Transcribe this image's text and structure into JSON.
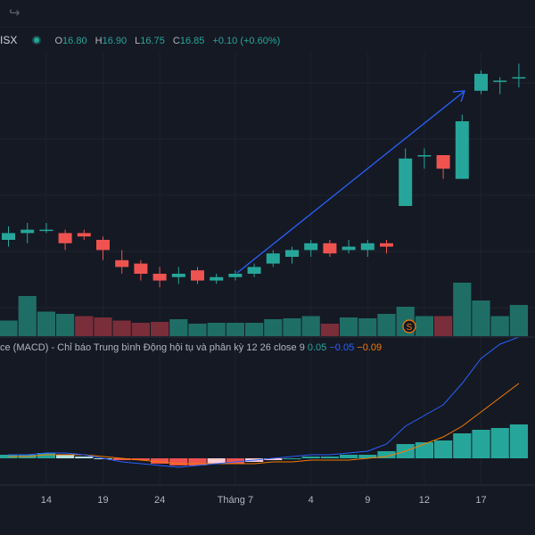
{
  "toolbar": {
    "redo_icon": "redo-icon"
  },
  "legend": {
    "symbol": "ISX",
    "open_label": "O",
    "open": "16.80",
    "high_label": "H",
    "high": "16.90",
    "low_label": "L",
    "low": "16.75",
    "close_label": "C",
    "close": "16.85",
    "change": "+0.10 (+0.60%)"
  },
  "macd_legend": {
    "title": "ce (MACD) - Chỉ báo Trung bình Động hội tụ và phân kỳ",
    "params": "12 26 close 9",
    "macd_value": "0.05",
    "signal_value": "−0.05",
    "hist_value": "−0.09"
  },
  "colors": {
    "up": "#26a69a",
    "down": "#ef5350",
    "up_volume": "#1f6e66",
    "down_volume": "#7a2e3a",
    "macd_line": "#2962ff",
    "signal_line": "#f57c00",
    "arrow": "#2962ff"
  },
  "session_marker": "S",
  "chart_data": {
    "type": "candlestick",
    "x_ticks": [
      {
        "label": "14",
        "index": 2
      },
      {
        "label": "19",
        "index": 5
      },
      {
        "label": "24",
        "index": 8
      },
      {
        "label": "Tháng 7",
        "index": 12
      },
      {
        "label": "4",
        "index": 16
      },
      {
        "label": "9",
        "index": 19
      },
      {
        "label": "12",
        "index": 22
      },
      {
        "label": "17",
        "index": 25
      }
    ],
    "candles": [
      {
        "o": 16.3,
        "h": 16.38,
        "l": 16.26,
        "c": 16.34
      },
      {
        "o": 16.34,
        "h": 16.4,
        "l": 16.28,
        "c": 16.36
      },
      {
        "o": 16.36,
        "h": 16.4,
        "l": 16.34,
        "c": 16.36
      },
      {
        "o": 16.34,
        "h": 16.36,
        "l": 16.24,
        "c": 16.28
      },
      {
        "o": 16.34,
        "h": 16.36,
        "l": 16.3,
        "c": 16.32
      },
      {
        "o": 16.3,
        "h": 16.32,
        "l": 16.18,
        "c": 16.24
      },
      {
        "o": 16.18,
        "h": 16.24,
        "l": 16.1,
        "c": 16.14
      },
      {
        "o": 16.16,
        "h": 16.18,
        "l": 16.06,
        "c": 16.1
      },
      {
        "o": 16.1,
        "h": 16.14,
        "l": 16.02,
        "c": 16.06
      },
      {
        "o": 16.08,
        "h": 16.14,
        "l": 16.04,
        "c": 16.1
      },
      {
        "o": 16.12,
        "h": 16.14,
        "l": 16.04,
        "c": 16.06
      },
      {
        "o": 16.06,
        "h": 16.1,
        "l": 16.04,
        "c": 16.08
      },
      {
        "o": 16.08,
        "h": 16.12,
        "l": 16.06,
        "c": 16.1
      },
      {
        "o": 16.1,
        "h": 16.16,
        "l": 16.08,
        "c": 16.14
      },
      {
        "o": 16.16,
        "h": 16.24,
        "l": 16.14,
        "c": 16.22
      },
      {
        "o": 16.2,
        "h": 16.26,
        "l": 16.16,
        "c": 16.24
      },
      {
        "o": 16.24,
        "h": 16.3,
        "l": 16.2,
        "c": 16.28
      },
      {
        "o": 16.28,
        "h": 16.3,
        "l": 16.2,
        "c": 16.22
      },
      {
        "o": 16.24,
        "h": 16.3,
        "l": 16.22,
        "c": 16.26
      },
      {
        "o": 16.24,
        "h": 16.3,
        "l": 16.2,
        "c": 16.28
      },
      {
        "o": 16.28,
        "h": 16.3,
        "l": 16.22,
        "c": 16.26
      },
      {
        "o": 16.5,
        "h": 16.84,
        "l": 16.5,
        "c": 16.78
      },
      {
        "o": 16.8,
        "h": 16.84,
        "l": 16.72,
        "c": 16.8
      },
      {
        "o": 16.8,
        "h": 16.8,
        "l": 16.66,
        "c": 16.72
      },
      {
        "o": 16.66,
        "h": 17.04,
        "l": 16.66,
        "c": 17.0
      },
      {
        "o": 17.18,
        "h": 17.3,
        "l": 17.16,
        "c": 17.28
      },
      {
        "o": 17.24,
        "h": 17.26,
        "l": 17.16,
        "c": 17.24
      },
      {
        "o": 17.26,
        "h": 17.34,
        "l": 17.2,
        "c": 17.26
      }
    ],
    "volumes": [
      0.35,
      0.9,
      0.55,
      0.5,
      0.45,
      0.42,
      0.35,
      0.3,
      0.32,
      0.38,
      0.28,
      0.3,
      0.3,
      0.3,
      0.38,
      0.4,
      0.45,
      0.28,
      0.42,
      0.4,
      0.5,
      0.66,
      0.45,
      0.45,
      1.2,
      0.8,
      0.45,
      0.7
    ],
    "volume_up": [
      true,
      true,
      true,
      true,
      false,
      false,
      false,
      false,
      false,
      true,
      true,
      true,
      true,
      true,
      true,
      true,
      true,
      false,
      true,
      true,
      true,
      true,
      true,
      false,
      true,
      true,
      true,
      true
    ],
    "macd_hist": [
      0.02,
      0.02,
      0.03,
      0.02,
      0.01,
      0.0,
      -0.01,
      -0.01,
      -0.03,
      -0.04,
      -0.04,
      -0.03,
      -0.03,
      -0.02,
      -0.01,
      0.0,
      0.01,
      0.01,
      0.02,
      0.02,
      0.04,
      0.08,
      0.09,
      0.1,
      0.14,
      0.16,
      0.17,
      0.19
    ],
    "macd_line": [
      0.02,
      0.02,
      0.03,
      0.03,
      0.02,
      0.0,
      -0.02,
      -0.03,
      -0.04,
      -0.05,
      -0.04,
      -0.03,
      -0.02,
      -0.01,
      0.0,
      0.01,
      0.02,
      0.02,
      0.03,
      0.04,
      0.08,
      0.18,
      0.24,
      0.3,
      0.42,
      0.56,
      0.64,
      0.68
    ],
    "signal_line": [
      0.01,
      0.01,
      0.02,
      0.02,
      0.02,
      0.01,
      0.0,
      -0.01,
      -0.02,
      -0.03,
      -0.03,
      -0.03,
      -0.03,
      -0.03,
      -0.02,
      -0.02,
      -0.01,
      -0.01,
      -0.01,
      0.0,
      0.01,
      0.04,
      0.08,
      0.12,
      0.18,
      0.26,
      0.34,
      0.42
    ]
  }
}
